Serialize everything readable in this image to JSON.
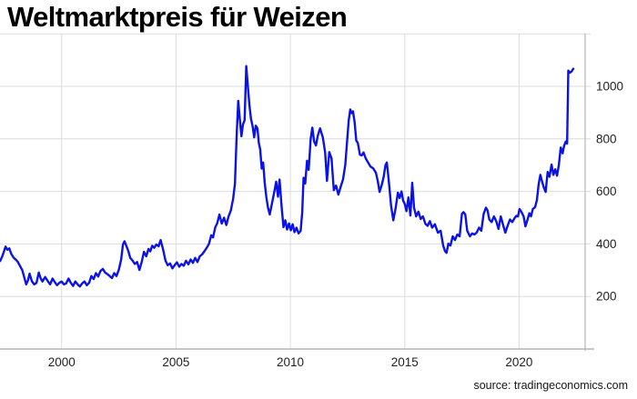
{
  "chart_data": {
    "type": "line",
    "title": "Weltmarktpreis für Weizen",
    "source_note": "source: tradingeconomics.com",
    "x_tick_labels": [
      "2000",
      "2005",
      "2010",
      "2015",
      "2020"
    ],
    "x_tick_years": [
      2000,
      2005,
      2010,
      2015,
      2020
    ],
    "y_tick_labels": [
      "200",
      "400",
      "600",
      "800",
      "1000"
    ],
    "y_tick_values": [
      200,
      400,
      600,
      800,
      1000
    ],
    "xlim": [
      1997.306,
      2022.888
    ],
    "ylim": [
      0,
      1200
    ],
    "grid": true,
    "legend": "none",
    "colors": {
      "line": "#0b12e6",
      "grid": "#dcdcdc",
      "axis": "#b4b4bc",
      "tick_label": "#222222",
      "title": "#000000",
      "source": "#151515",
      "background": "#ffffff"
    },
    "series": [
      {
        "name": "Weizen",
        "points": [
          [
            1997.31,
            335
          ],
          [
            1997.4,
            352
          ],
          [
            1997.48,
            372
          ],
          [
            1997.55,
            390
          ],
          [
            1997.63,
            378
          ],
          [
            1997.71,
            383
          ],
          [
            1997.8,
            362
          ],
          [
            1997.9,
            348
          ],
          [
            1998.0,
            340
          ],
          [
            1998.08,
            332
          ],
          [
            1998.17,
            318
          ],
          [
            1998.28,
            300
          ],
          [
            1998.45,
            246
          ],
          [
            1998.53,
            262
          ],
          [
            1998.6,
            287
          ],
          [
            1998.7,
            258
          ],
          [
            1998.8,
            246
          ],
          [
            1998.9,
            252
          ],
          [
            1999.0,
            291
          ],
          [
            1999.08,
            270
          ],
          [
            1999.16,
            257
          ],
          [
            1999.28,
            274
          ],
          [
            1999.4,
            258
          ],
          [
            1999.5,
            246
          ],
          [
            1999.6,
            268
          ],
          [
            1999.7,
            255
          ],
          [
            1999.8,
            243
          ],
          [
            1999.9,
            252
          ],
          [
            2000.0,
            257
          ],
          [
            2000.1,
            246
          ],
          [
            2000.2,
            250
          ],
          [
            2000.3,
            268
          ],
          [
            2000.4,
            252
          ],
          [
            2000.5,
            240
          ],
          [
            2000.6,
            257
          ],
          [
            2000.7,
            246
          ],
          [
            2000.8,
            238
          ],
          [
            2000.9,
            250
          ],
          [
            2001.0,
            257
          ],
          [
            2001.1,
            243
          ],
          [
            2001.2,
            252
          ],
          [
            2001.3,
            278
          ],
          [
            2001.4,
            266
          ],
          [
            2001.5,
            289
          ],
          [
            2001.6,
            276
          ],
          [
            2001.7,
            297
          ],
          [
            2001.8,
            305
          ],
          [
            2001.9,
            291
          ],
          [
            2002.0,
            285
          ],
          [
            2002.1,
            278
          ],
          [
            2002.2,
            270
          ],
          [
            2002.3,
            289
          ],
          [
            2002.4,
            278
          ],
          [
            2002.5,
            302
          ],
          [
            2002.6,
            340
          ],
          [
            2002.68,
            398
          ],
          [
            2002.75,
            410
          ],
          [
            2002.83,
            393
          ],
          [
            2002.92,
            372
          ],
          [
            2003.0,
            347
          ],
          [
            2003.1,
            337
          ],
          [
            2003.2,
            324
          ],
          [
            2003.3,
            331
          ],
          [
            2003.4,
            301
          ],
          [
            2003.5,
            331
          ],
          [
            2003.6,
            370
          ],
          [
            2003.7,
            353
          ],
          [
            2003.8,
            381
          ],
          [
            2003.88,
            372
          ],
          [
            2003.96,
            393
          ],
          [
            2004.05,
            385
          ],
          [
            2004.14,
            398
          ],
          [
            2004.24,
            391
          ],
          [
            2004.33,
            415
          ],
          [
            2004.44,
            378
          ],
          [
            2004.54,
            337
          ],
          [
            2004.64,
            319
          ],
          [
            2004.74,
            326
          ],
          [
            2004.84,
            307
          ],
          [
            2004.94,
            319
          ],
          [
            2005.04,
            330
          ],
          [
            2005.14,
            313
          ],
          [
            2005.24,
            324
          ],
          [
            2005.34,
            317
          ],
          [
            2005.44,
            336
          ],
          [
            2005.54,
            322
          ],
          [
            2005.64,
            341
          ],
          [
            2005.74,
            328
          ],
          [
            2005.84,
            347
          ],
          [
            2005.94,
            331
          ],
          [
            2006.04,
            353
          ],
          [
            2006.14,
            360
          ],
          [
            2006.24,
            372
          ],
          [
            2006.34,
            385
          ],
          [
            2006.44,
            400
          ],
          [
            2006.54,
            433
          ],
          [
            2006.62,
            425
          ],
          [
            2006.72,
            464
          ],
          [
            2006.8,
            478
          ],
          [
            2006.9,
            512
          ],
          [
            2007.0,
            478
          ],
          [
            2007.1,
            500
          ],
          [
            2007.2,
            472
          ],
          [
            2007.3,
            505
          ],
          [
            2007.4,
            528
          ],
          [
            2007.5,
            572
          ],
          [
            2007.58,
            630
          ],
          [
            2007.65,
            808
          ],
          [
            2007.72,
            945
          ],
          [
            2007.79,
            876
          ],
          [
            2007.86,
            810
          ],
          [
            2007.93,
            855
          ],
          [
            2008.0,
            871
          ],
          [
            2008.07,
            1077
          ],
          [
            2008.14,
            1003
          ],
          [
            2008.21,
            928
          ],
          [
            2008.28,
            876
          ],
          [
            2008.35,
            848
          ],
          [
            2008.42,
            806
          ],
          [
            2008.49,
            850
          ],
          [
            2008.56,
            840
          ],
          [
            2008.62,
            785
          ],
          [
            2008.68,
            760
          ],
          [
            2008.75,
            687
          ],
          [
            2008.81,
            710
          ],
          [
            2008.88,
            633
          ],
          [
            2008.95,
            578
          ],
          [
            2009.02,
            540
          ],
          [
            2009.1,
            512
          ],
          [
            2009.2,
            556
          ],
          [
            2009.3,
            600
          ],
          [
            2009.38,
            637
          ],
          [
            2009.46,
            580
          ],
          [
            2009.53,
            645
          ],
          [
            2009.62,
            540
          ],
          [
            2009.7,
            464
          ],
          [
            2009.78,
            490
          ],
          [
            2009.86,
            455
          ],
          [
            2009.94,
            478
          ],
          [
            2010.02,
            452
          ],
          [
            2010.1,
            475
          ],
          [
            2010.18,
            445
          ],
          [
            2010.27,
            462
          ],
          [
            2010.36,
            440
          ],
          [
            2010.45,
            450
          ],
          [
            2010.52,
            520
          ],
          [
            2010.58,
            652
          ],
          [
            2010.65,
            630
          ],
          [
            2010.73,
            717
          ],
          [
            2010.8,
            682
          ],
          [
            2010.89,
            800
          ],
          [
            2010.96,
            843
          ],
          [
            2011.04,
            790
          ],
          [
            2011.12,
            775
          ],
          [
            2011.2,
            812
          ],
          [
            2011.3,
            840
          ],
          [
            2011.42,
            805
          ],
          [
            2011.52,
            748
          ],
          [
            2011.6,
            640
          ],
          [
            2011.7,
            750
          ],
          [
            2011.8,
            726
          ],
          [
            2011.9,
            605
          ],
          [
            2012.0,
            622
          ],
          [
            2012.1,
            588
          ],
          [
            2012.2,
            618
          ],
          [
            2012.3,
            645
          ],
          [
            2012.4,
            700
          ],
          [
            2012.48,
            790
          ],
          [
            2012.55,
            870
          ],
          [
            2012.62,
            912
          ],
          [
            2012.68,
            898
          ],
          [
            2012.74,
            905
          ],
          [
            2012.81,
            863
          ],
          [
            2012.88,
            793
          ],
          [
            2012.95,
            785
          ],
          [
            2013.04,
            740
          ],
          [
            2013.12,
            737
          ],
          [
            2013.2,
            748
          ],
          [
            2013.3,
            725
          ],
          [
            2013.4,
            710
          ],
          [
            2013.5,
            695
          ],
          [
            2013.62,
            688
          ],
          [
            2013.74,
            671
          ],
          [
            2013.82,
            640
          ],
          [
            2013.9,
            598
          ],
          [
            2014.0,
            626
          ],
          [
            2014.08,
            655
          ],
          [
            2014.16,
            700
          ],
          [
            2014.22,
            710
          ],
          [
            2014.3,
            645
          ],
          [
            2014.4,
            547
          ],
          [
            2014.5,
            490
          ],
          [
            2014.6,
            535
          ],
          [
            2014.7,
            595
          ],
          [
            2014.78,
            575
          ],
          [
            2014.86,
            600
          ],
          [
            2014.93,
            565
          ],
          [
            2015.0,
            553
          ],
          [
            2015.08,
            525
          ],
          [
            2015.16,
            577
          ],
          [
            2015.25,
            508
          ],
          [
            2015.33,
            633
          ],
          [
            2015.41,
            538
          ],
          [
            2015.5,
            505
          ],
          [
            2015.6,
            523
          ],
          [
            2015.7,
            495
          ],
          [
            2015.8,
            505
          ],
          [
            2015.9,
            477
          ],
          [
            2016.0,
            469
          ],
          [
            2016.1,
            487
          ],
          [
            2016.2,
            462
          ],
          [
            2016.32,
            475
          ],
          [
            2016.45,
            443
          ],
          [
            2016.57,
            450
          ],
          [
            2016.68,
            394
          ],
          [
            2016.76,
            373
          ],
          [
            2016.83,
            366
          ],
          [
            2016.91,
            401
          ],
          [
            2017.0,
            394
          ],
          [
            2017.1,
            429
          ],
          [
            2017.2,
            415
          ],
          [
            2017.3,
            436
          ],
          [
            2017.4,
            429
          ],
          [
            2017.5,
            515
          ],
          [
            2017.57,
            521
          ],
          [
            2017.65,
            512
          ],
          [
            2017.73,
            450
          ],
          [
            2017.85,
            429
          ],
          [
            2017.95,
            440
          ],
          [
            2018.05,
            436
          ],
          [
            2018.15,
            444
          ],
          [
            2018.25,
            462
          ],
          [
            2018.35,
            450
          ],
          [
            2018.45,
            515
          ],
          [
            2018.55,
            538
          ],
          [
            2018.62,
            528
          ],
          [
            2018.7,
            493
          ],
          [
            2018.8,
            483
          ],
          [
            2018.9,
            505
          ],
          [
            2019.0,
            487
          ],
          [
            2019.1,
            457
          ],
          [
            2019.2,
            505
          ],
          [
            2019.3,
            473
          ],
          [
            2019.4,
            443
          ],
          [
            2019.5,
            469
          ],
          [
            2019.6,
            493
          ],
          [
            2019.7,
            483
          ],
          [
            2019.8,
            498
          ],
          [
            2019.88,
            507
          ],
          [
            2019.95,
            505
          ],
          [
            2020.02,
            533
          ],
          [
            2020.1,
            523
          ],
          [
            2020.2,
            505
          ],
          [
            2020.28,
            467
          ],
          [
            2020.36,
            490
          ],
          [
            2020.45,
            517
          ],
          [
            2020.52,
            505
          ],
          [
            2020.6,
            533
          ],
          [
            2020.7,
            540
          ],
          [
            2020.78,
            567
          ],
          [
            2020.86,
            629
          ],
          [
            2020.93,
            663
          ],
          [
            2021.0,
            640
          ],
          [
            2021.08,
            615
          ],
          [
            2021.16,
            598
          ],
          [
            2021.25,
            674
          ],
          [
            2021.33,
            656
          ],
          [
            2021.42,
            702
          ],
          [
            2021.5,
            663
          ],
          [
            2021.58,
            684
          ],
          [
            2021.66,
            660
          ],
          [
            2021.74,
            700
          ],
          [
            2021.82,
            767
          ],
          [
            2021.9,
            745
          ],
          [
            2021.97,
            774
          ],
          [
            2022.04,
            790
          ],
          [
            2022.1,
            782
          ],
          [
            2022.15,
            1060
          ],
          [
            2022.22,
            1052
          ],
          [
            2022.29,
            1056
          ],
          [
            2022.37,
            1067
          ]
        ]
      }
    ]
  }
}
